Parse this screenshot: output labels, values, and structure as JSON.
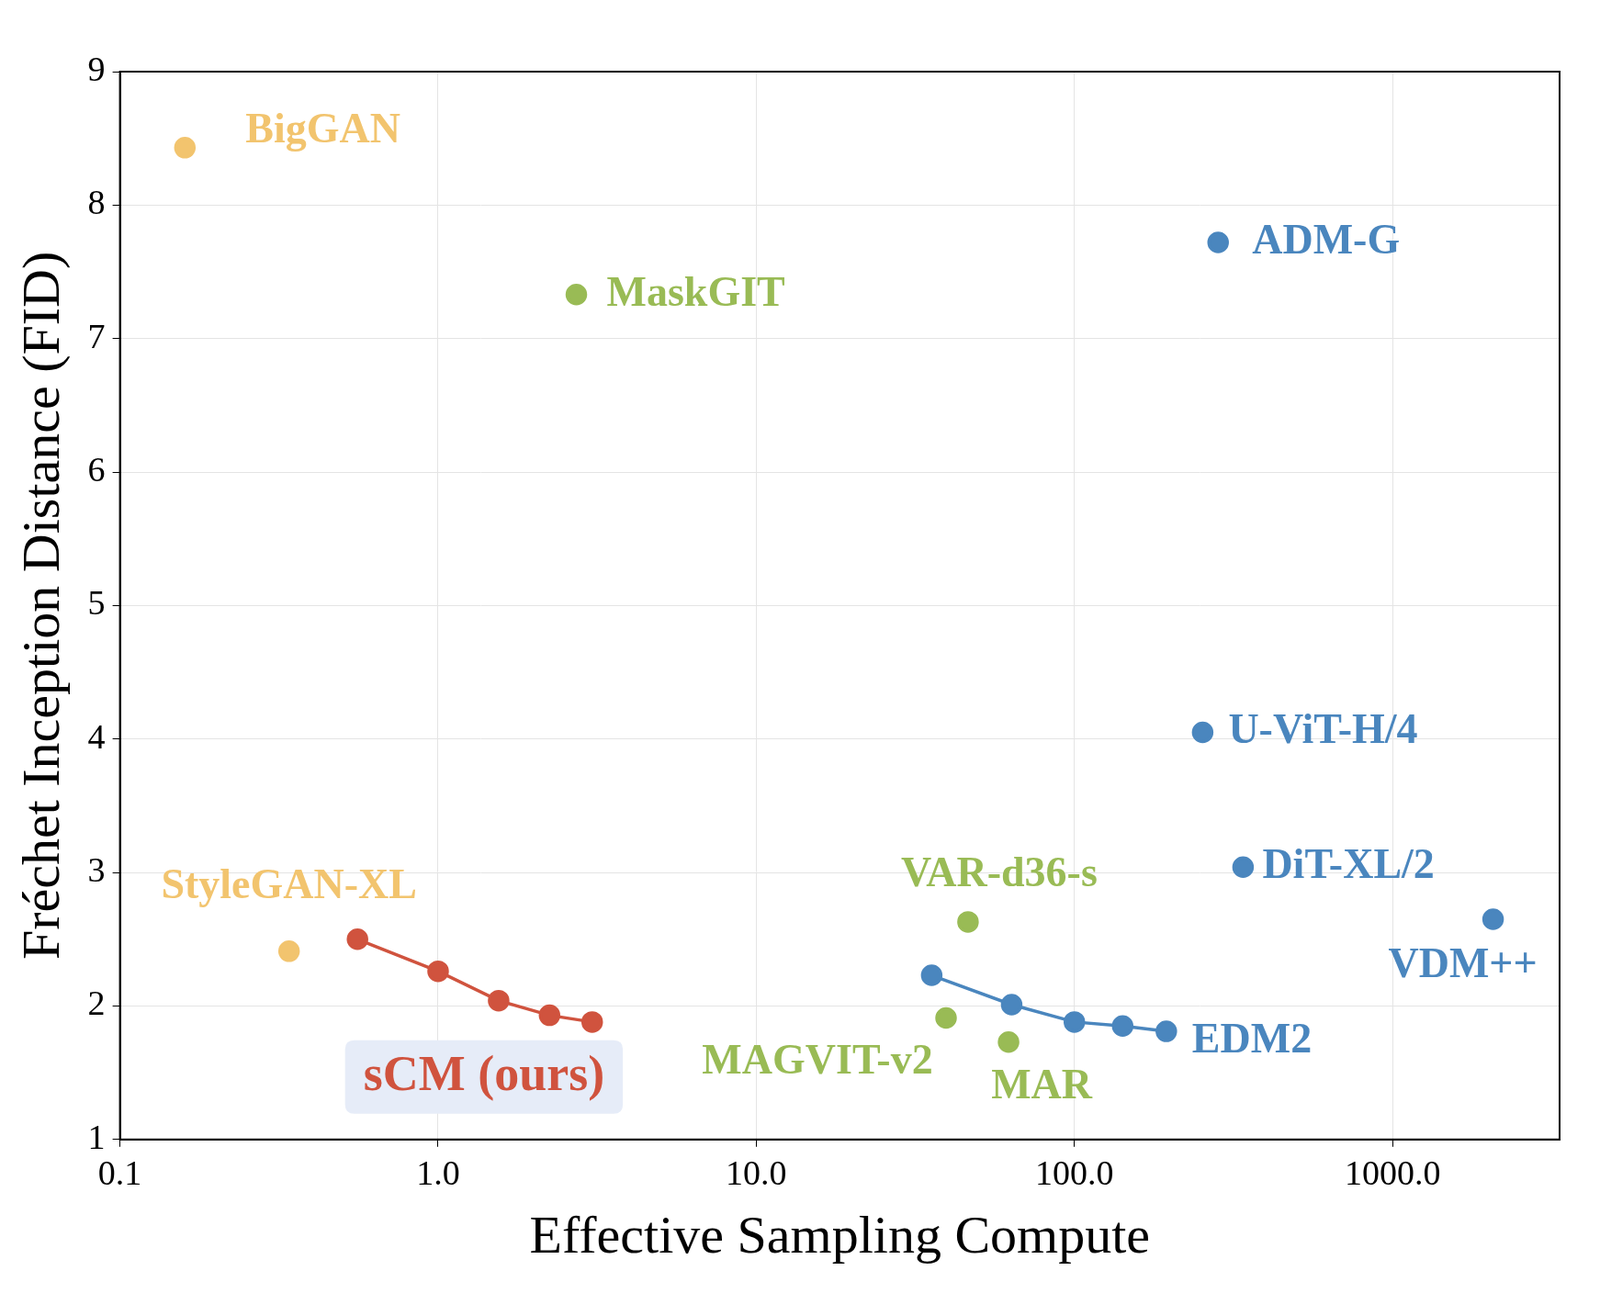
{
  "chart_data": {
    "type": "scatter",
    "x_label": "Effective Sampling Compute",
    "y_label": "Fréchet Inception Distance (FID)",
    "log": "x",
    "grid": true,
    "xlim": [
      0.1,
      3350
    ],
    "ylim": [
      1,
      9
    ],
    "xticks": [
      0.1,
      {
        "value": 1,
        "label": "1.0"
      },
      {
        "value": 10,
        "label": "10.0"
      },
      {
        "value": 100,
        "label": "100.0"
      },
      {
        "value": 1000,
        "label": "1000.0"
      }
    ],
    "yticks": [
      1,
      2,
      3,
      4,
      5,
      6,
      7,
      8,
      9
    ],
    "series": [
      {
        "name": "BigGAN",
        "color": "#F2C46E",
        "type": "scatter",
        "marker": "circle",
        "x": [
          0.16
        ],
        "values": [
          8.43
        ]
      },
      {
        "name": "StyleGAN-XL",
        "color": "#F2C46E",
        "type": "scatter",
        "marker": "circle",
        "x": [
          0.34
        ],
        "values": [
          2.41
        ]
      },
      {
        "name": "MaskGIT",
        "color": "#99BB55",
        "type": "scatter",
        "marker": "circle",
        "x": [
          2.72
        ],
        "values": [
          7.33
        ]
      },
      {
        "name": "VAR-d36-s",
        "color": "#99BB55",
        "type": "scatter",
        "marker": "circle",
        "x": [
          46.3
        ],
        "values": [
          2.63
        ]
      },
      {
        "name": "MAGVIT-v2",
        "color": "#99BB55",
        "type": "scatter",
        "marker": "circle",
        "x": [
          39.5
        ],
        "values": [
          1.91
        ]
      },
      {
        "name": "MAR",
        "color": "#99BB55",
        "type": "scatter",
        "marker": "circle",
        "x": [
          62.1
        ],
        "values": [
          1.73
        ]
      },
      {
        "name": "sCM (ours)",
        "color": "#D0533E",
        "type": "line",
        "marker": "circle",
        "line_style": "solid",
        "x": [
          0.558,
          1.0,
          1.55,
          2.24,
          3.05
        ],
        "values": [
          2.5,
          2.26,
          2.04,
          1.93,
          1.88
        ]
      },
      {
        "name": "ADM-G",
        "color": "#4A86BE",
        "type": "scatter",
        "marker": "circle",
        "x": [
          283
        ],
        "values": [
          7.72
        ]
      },
      {
        "name": "U-ViT-H/4",
        "color": "#4A86BE",
        "type": "scatter",
        "marker": "circle",
        "x": [
          253
        ],
        "values": [
          4.05
        ]
      },
      {
        "name": "DiT-XL/2",
        "color": "#4A86BE",
        "type": "scatter",
        "marker": "circle",
        "x": [
          339
        ],
        "values": [
          3.04
        ]
      },
      {
        "name": "VDM++",
        "color": "#4A86BE",
        "type": "scatter",
        "marker": "circle",
        "x": [
          2070
        ],
        "values": [
          2.65
        ]
      },
      {
        "name": "EDM2",
        "color": "#4A86BE",
        "type": "line",
        "marker": "circle",
        "line_style": "solid",
        "x": [
          35.6,
          63.5,
          100,
          141.8,
          194.5
        ],
        "values": [
          2.23,
          2.01,
          1.88,
          1.85,
          1.81
        ]
      }
    ]
  }
}
